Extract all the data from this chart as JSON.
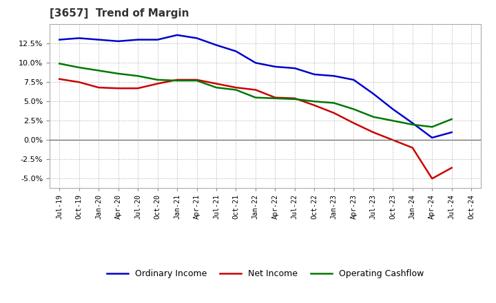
{
  "title": "[3657]  Trend of Margin",
  "title_fontsize": 11,
  "title_color": "#333333",
  "background_color": "#ffffff",
  "plot_bg_color": "#ffffff",
  "grid_color": "#aaaaaa",
  "ylim": [
    -0.062,
    0.15
  ],
  "yticks": [
    -0.05,
    -0.025,
    0.0,
    0.025,
    0.05,
    0.075,
    0.1,
    0.125
  ],
  "x_labels": [
    "Jul-19",
    "Oct-19",
    "Jan-20",
    "Apr-20",
    "Jul-20",
    "Oct-20",
    "Jan-21",
    "Apr-21",
    "Jul-21",
    "Oct-21",
    "Jan-22",
    "Apr-22",
    "Jul-22",
    "Oct-22",
    "Jan-23",
    "Apr-23",
    "Jul-23",
    "Oct-23",
    "Jan-24",
    "Apr-24",
    "Jul-24",
    "Oct-24"
  ],
  "ordinary_income": [
    0.13,
    0.132,
    0.13,
    0.128,
    0.13,
    0.13,
    0.136,
    0.132,
    0.123,
    0.115,
    0.1,
    0.095,
    0.093,
    0.085,
    0.083,
    0.078,
    0.06,
    0.04,
    0.022,
    0.003,
    0.01,
    null
  ],
  "net_income": [
    0.079,
    0.075,
    0.068,
    0.067,
    0.067,
    0.073,
    0.078,
    0.078,
    0.073,
    0.068,
    0.065,
    0.055,
    0.054,
    0.045,
    0.035,
    0.022,
    0.01,
    0.0,
    -0.01,
    -0.05,
    -0.036,
    null
  ],
  "operating_cashflow": [
    0.099,
    0.094,
    0.09,
    0.086,
    0.083,
    0.078,
    0.077,
    0.077,
    0.068,
    0.065,
    0.055,
    0.054,
    0.053,
    0.05,
    0.048,
    0.04,
    0.03,
    0.025,
    0.02,
    0.017,
    0.027,
    null
  ],
  "line_colors": {
    "ordinary_income": "#0000cc",
    "net_income": "#cc0000",
    "operating_cashflow": "#007700"
  },
  "line_width": 1.8,
  "legend_labels": {
    "ordinary_income": "Ordinary Income",
    "net_income": "Net Income",
    "operating_cashflow": "Operating Cashflow"
  }
}
